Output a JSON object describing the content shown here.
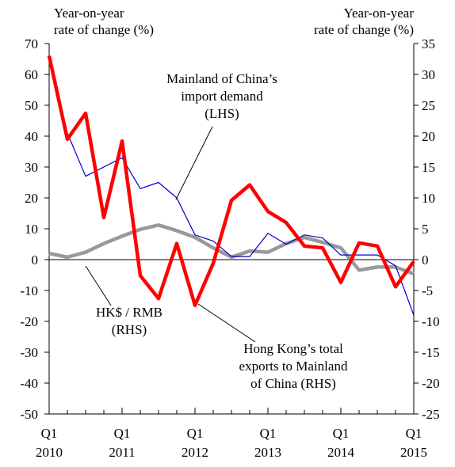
{
  "chart_data": {
    "type": "line",
    "y_label": "Year-on-year\nrate of change (%)",
    "y2_label": "Year-on-year\nrate of change (%)",
    "categories": [
      "Q1\n2010",
      null,
      null,
      null,
      "Q1\n2011",
      null,
      null,
      null,
      "Q1\n2012",
      null,
      null,
      null,
      "Q1\n2013",
      null,
      null,
      null,
      "Q1\n2014",
      null,
      null,
      null,
      "Q1\n2015"
    ],
    "ylim": [
      -50,
      70
    ],
    "yticks": [
      -50,
      -40,
      -30,
      -20,
      -10,
      0,
      10,
      20,
      30,
      40,
      50,
      60,
      70
    ],
    "y2lim": [
      -25,
      35
    ],
    "y2ticks": [
      -25,
      -20,
      -15,
      -10,
      -5,
      0,
      5,
      10,
      15,
      20,
      25,
      30,
      35
    ],
    "series": [
      {
        "name": "Mainland of China’s\nimport demand\n(LHS)",
        "color": "#0000cc",
        "width": 1.2,
        "values": [
          66,
          41,
          27,
          30,
          33,
          23,
          25,
          20,
          8,
          6,
          1,
          1,
          8.5,
          5,
          8,
          7,
          1.5,
          1.5,
          1.5,
          -2,
          -18
        ]
      },
      {
        "name": "Hong Kong’s total\nexports to Mainland\nof China (RHS)",
        "color": "#ff0000",
        "width": 4.5,
        "axis": "y2",
        "values": [
          33,
          19.5,
          23.7,
          6.8,
          19.2,
          -2.6,
          -6.3,
          2.6,
          -7.4,
          -0.6,
          9.6,
          12.1,
          7.8,
          6.0,
          2.2,
          1.9,
          -3.7,
          2.7,
          2.2,
          -4.4,
          -0.3
        ]
      },
      {
        "name": "HK$ / RMB\n(RHS)",
        "color": "#999999",
        "width": 4.5,
        "axis": "y2",
        "values": [
          1.0,
          0.4,
          1.2,
          2.6,
          3.8,
          4.9,
          5.6,
          4.7,
          3.6,
          1.9,
          0.4,
          1.4,
          1.2,
          2.6,
          3.6,
          2.8,
          1.9,
          -1.7,
          -1.2,
          -1.2,
          -2.3
        ]
      }
    ]
  }
}
